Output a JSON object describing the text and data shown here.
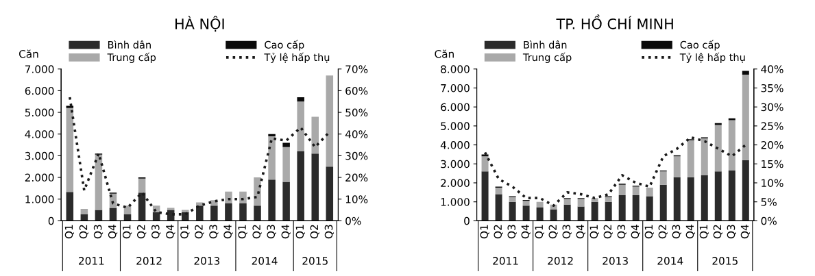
{
  "chart_data": [
    {
      "type": "bar",
      "title": "HÀ NỘI",
      "ylabel": "Căn",
      "stacked": true,
      "legend": "top",
      "grid": false,
      "categories": [
        "Q1",
        "Q2",
        "Q3",
        "Q4",
        "Q1",
        "Q2",
        "Q3",
        "Q4",
        "Q1",
        "Q2",
        "Q3",
        "Q4",
        "Q1",
        "Q2",
        "Q3",
        "Q4",
        "Q1",
        "Q2",
        "Q3"
      ],
      "annotations": [
        "2011",
        "2012",
        "2013",
        "2014",
        "2015"
      ],
      "ylim": [
        0,
        7000
      ],
      "yticks": [
        0,
        {
          "value": 1000,
          "label": "1.000"
        },
        {
          "value": 2000,
          "label": "2.000"
        },
        {
          "value": 3000,
          "label": "3.000"
        },
        {
          "value": 4000,
          "label": "4.000"
        },
        {
          "value": 5000,
          "label": "5.000"
        },
        {
          "value": 6000,
          "label": "6.000"
        },
        {
          "value": 7000,
          "label": "7.000"
        }
      ],
      "y2lim": [
        0,
        70
      ],
      "y2ticks": [
        {
          "value": 0,
          "label": "0%"
        },
        {
          "value": 10,
          "label": "10%"
        },
        {
          "value": 20,
          "label": "20%"
        },
        {
          "value": 30,
          "label": "30%"
        },
        {
          "value": 40,
          "label": "40%"
        },
        {
          "value": 50,
          "label": "50%"
        },
        {
          "value": 60,
          "label": "60%"
        },
        {
          "value": 70,
          "label": "70%"
        }
      ],
      "series": [
        {
          "name": "Bình dân",
          "color": "#2b2b2b",
          "values": [
            1330,
            300,
            500,
            600,
            300,
            1300,
            400,
            500,
            400,
            700,
            700,
            800,
            800,
            700,
            1900,
            1800,
            3200,
            3100,
            2500
          ]
        },
        {
          "name": "Trung cấp",
          "color": "#a9a9a9",
          "values": [
            3870,
            250,
            2550,
            650,
            400,
            650,
            300,
            100,
            100,
            150,
            250,
            550,
            550,
            1300,
            2000,
            1600,
            2300,
            1700,
            4200
          ]
        },
        {
          "name": "Cao cấp",
          "color": "#0a0a0a",
          "values": [
            100,
            0,
            50,
            50,
            0,
            50,
            0,
            0,
            0,
            0,
            0,
            0,
            0,
            0,
            100,
            200,
            200,
            0,
            0
          ]
        },
        {
          "name": "Tỷ lệ hấp thụ",
          "type": "line",
          "axis": "y2",
          "color": "#1a1a1a",
          "line_style": "dotted",
          "values": [
            57,
            14,
            31,
            8,
            6,
            13,
            4,
            3,
            3,
            7,
            9,
            10,
            10,
            11,
            38,
            37,
            43,
            34,
            41
          ]
        }
      ]
    },
    {
      "type": "bar",
      "title": "TP. HỒ CHÍ MINH",
      "ylabel": "Căn",
      "stacked": true,
      "legend": "top",
      "grid": false,
      "categories": [
        "Q1",
        "Q2",
        "Q3",
        "Q4",
        "Q1",
        "Q2",
        "Q3",
        "Q4",
        "Q1",
        "Q2",
        "Q3",
        "Q4",
        "Q1",
        "Q2",
        "Q3",
        "Q4",
        "Q1",
        "Q2",
        "Q3",
        "Q4"
      ],
      "annotations": [
        "2011",
        "2012",
        "2013",
        "2014",
        "2015"
      ],
      "ylim": [
        0,
        8000
      ],
      "yticks": [
        0,
        {
          "value": 1000,
          "label": "1.000"
        },
        {
          "value": 2000,
          "label": "2.000"
        },
        {
          "value": 3000,
          "label": "3.000"
        },
        {
          "value": 4000,
          "label": "4.000"
        },
        {
          "value": 5000,
          "label": "5.000"
        },
        {
          "value": 6000,
          "label": "6.000"
        },
        {
          "value": 7000,
          "label": "7.000"
        },
        {
          "value": 8000,
          "label": "8.000"
        }
      ],
      "y2lim": [
        0,
        40
      ],
      "y2ticks": [
        {
          "value": 0,
          "label": "0%"
        },
        {
          "value": 5,
          "label": "5%"
        },
        {
          "value": 10,
          "label": "10%"
        },
        {
          "value": 15,
          "label": "15%"
        },
        {
          "value": 20,
          "label": "20%"
        },
        {
          "value": 25,
          "label": "25%"
        },
        {
          "value": 30,
          "label": "30%"
        },
        {
          "value": 35,
          "label": "35%"
        },
        {
          "value": 40,
          "label": "40%"
        }
      ],
      "series": [
        {
          "name": "Bình dân",
          "color": "#2b2b2b",
          "values": [
            2600,
            1400,
            1000,
            800,
            700,
            600,
            850,
            750,
            1000,
            1000,
            1350,
            1350,
            1300,
            1900,
            2300,
            2300,
            2400,
            2600,
            2650,
            3200
          ]
        },
        {
          "name": "Trung cấp",
          "color": "#a9a9a9",
          "values": [
            800,
            350,
            250,
            250,
            300,
            250,
            300,
            400,
            200,
            250,
            550,
            450,
            450,
            700,
            1100,
            1950,
            1950,
            2450,
            2650,
            4500
          ]
        },
        {
          "name": "Cao cấp",
          "color": "#0a0a0a",
          "values": [
            100,
            50,
            50,
            50,
            0,
            0,
            50,
            50,
            0,
            50,
            50,
            50,
            0,
            50,
            50,
            50,
            50,
            100,
            100,
            200
          ]
        },
        {
          "name": "Tỷ lệ hấp thụ",
          "type": "line",
          "axis": "y2",
          "color": "#1a1a1a",
          "line_style": "dotted",
          "values": [
            18,
            11,
            9,
            6,
            6,
            4,
            7.5,
            7,
            6,
            7,
            12,
            10,
            9,
            17,
            19,
            22,
            21,
            19,
            17,
            20
          ]
        }
      ]
    }
  ]
}
